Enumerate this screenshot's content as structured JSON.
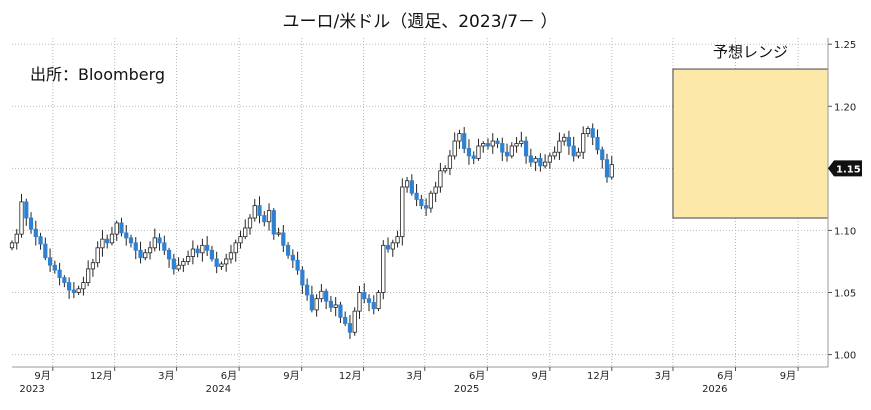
{
  "chart_data": {
    "type": "candlestick",
    "title": "ユーロ/米ドル（週足、2023/7－ ）",
    "source": "出所：Bloomberg",
    "y_ticks": [
      1.0,
      1.05,
      1.1,
      1.15,
      1.2,
      1.25
    ],
    "ylim": [
      0.99,
      1.255
    ],
    "x_ticks": [
      {
        "label": "9月",
        "date": "2023-09-01"
      },
      {
        "label": "12月",
        "date": "2023-12-01"
      },
      {
        "label": "3月",
        "date": "2024-03-01"
      },
      {
        "label": "6月",
        "date": "2024-06-01"
      },
      {
        "label": "9月",
        "date": "2024-09-01"
      },
      {
        "label": "12月",
        "date": "2024-12-01"
      },
      {
        "label": "3月",
        "date": "2025-03-01"
      },
      {
        "label": "6月",
        "date": "2025-06-01"
      },
      {
        "label": "9月",
        "date": "2025-09-01"
      },
      {
        "label": "12月",
        "date": "2025-12-01"
      },
      {
        "label": "3月",
        "date": "2026-03-01"
      },
      {
        "label": "6月",
        "date": "2026-06-01"
      },
      {
        "label": "9月",
        "date": "2026-09-01"
      }
    ],
    "x_year_labels": [
      {
        "label": "2023",
        "date": "2023-09-01"
      },
      {
        "label": "2024",
        "date": "2024-06-01"
      },
      {
        "label": "2025",
        "date": "2025-06-01"
      },
      {
        "label": "2026",
        "date": "2026-06-01"
      }
    ],
    "xlim": [
      "2023-07-03",
      "2026-10-15"
    ],
    "last_value": {
      "value": 1.15,
      "label": "1.15"
    },
    "forecast_range": {
      "label": "予想レンジ",
      "start": "2026-03-01",
      "end": "2026-10-15",
      "low": 1.11,
      "high": 1.23
    },
    "bull_color": "#ffffff",
    "bear_color": "#2f80d0",
    "wick_color": "#222222",
    "range_fill": "#fce8a8",
    "range_stroke": "#444444",
    "candles_start": "2023-07-03",
    "candles_interval_days": 7,
    "closes": [
      1.09,
      1.097,
      1.123,
      1.11,
      1.101,
      1.095,
      1.089,
      1.078,
      1.072,
      1.068,
      1.062,
      1.058,
      1.052,
      1.05,
      1.053,
      1.058,
      1.069,
      1.074,
      1.086,
      1.093,
      1.09,
      1.097,
      1.106,
      1.098,
      1.094,
      1.09,
      1.084,
      1.078,
      1.082,
      1.086,
      1.094,
      1.09,
      1.084,
      1.077,
      1.069,
      1.072,
      1.075,
      1.079,
      1.085,
      1.082,
      1.088,
      1.084,
      1.077,
      1.071,
      1.073,
      1.077,
      1.082,
      1.09,
      1.095,
      1.102,
      1.11,
      1.12,
      1.112,
      1.107,
      1.116,
      1.097,
      1.098,
      1.088,
      1.08,
      1.076,
      1.068,
      1.056,
      1.048,
      1.036,
      1.045,
      1.051,
      1.043,
      1.038,
      1.04,
      1.03,
      1.025,
      1.018,
      1.035,
      1.05,
      1.045,
      1.042,
      1.037,
      1.05,
      1.088,
      1.085,
      1.09,
      1.095,
      1.135,
      1.14,
      1.13,
      1.125,
      1.12,
      1.118,
      1.13,
      1.135,
      1.148,
      1.15,
      1.16,
      1.172,
      1.178,
      1.166,
      1.16,
      1.158,
      1.168,
      1.17,
      1.168,
      1.172,
      1.17,
      1.163,
      1.16,
      1.168,
      1.17,
      1.172,
      1.16,
      1.155,
      1.158,
      1.152,
      1.155,
      1.16,
      1.163,
      1.172,
      1.175,
      1.168,
      1.16,
      1.163,
      1.178,
      1.182,
      1.175,
      1.165,
      1.157,
      1.143,
      1.153
    ]
  }
}
